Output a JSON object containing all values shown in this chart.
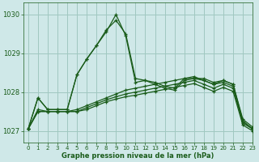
{
  "xlabel": "Graphe pression niveau de la mer (hPa)",
  "bg_color": "#cfe8e8",
  "grid_color": "#a0c8c0",
  "line_color": "#1a5c1a",
  "marker": "+",
  "xlim": [
    -0.5,
    23
  ],
  "ylim": [
    1026.7,
    1030.3
  ],
  "yticks": [
    1027,
    1028,
    1029,
    1030
  ],
  "xtick_labels": [
    "0",
    "1",
    "2",
    "3",
    "4",
    "5",
    "6",
    "7",
    "8",
    "9",
    "10",
    "11",
    "12",
    "13",
    "14",
    "15",
    "16",
    "17",
    "18",
    "19",
    "20",
    "21",
    "22",
    "23"
  ],
  "lines": [
    [
      1027.05,
      1027.85,
      1027.55,
      1027.55,
      1027.55,
      1028.45,
      1028.85,
      1029.2,
      1029.6,
      1029.85,
      1029.5,
      1028.35,
      1028.3,
      1028.25,
      1028.15,
      1028.1,
      1028.35,
      1028.35,
      1028.35,
      1028.25,
      1028.3,
      1028.2,
      1027.3,
      1027.1
    ],
    [
      1027.05,
      1027.85,
      1027.55,
      1027.55,
      1027.55,
      1028.45,
      1028.85,
      1029.2,
      1029.55,
      1030.0,
      1029.45,
      1028.25,
      1028.3,
      1028.2,
      1028.1,
      1028.05,
      1028.3,
      1028.35,
      1028.3,
      1028.2,
      1028.25,
      1028.15,
      1027.25,
      1027.05
    ],
    [
      1027.05,
      1027.55,
      1027.5,
      1027.5,
      1027.5,
      1027.55,
      1027.65,
      1027.75,
      1027.85,
      1027.95,
      1028.05,
      1028.1,
      1028.15,
      1028.2,
      1028.25,
      1028.3,
      1028.35,
      1028.4,
      1028.3,
      1028.2,
      1028.3,
      1028.2,
      1027.25,
      1027.05
    ],
    [
      1027.05,
      1027.5,
      1027.5,
      1027.5,
      1027.5,
      1027.5,
      1027.6,
      1027.7,
      1027.8,
      1027.88,
      1027.95,
      1028.0,
      1028.05,
      1028.1,
      1028.15,
      1028.2,
      1028.25,
      1028.3,
      1028.2,
      1028.1,
      1028.2,
      1028.1,
      1027.2,
      1027.05
    ],
    [
      1027.05,
      1027.5,
      1027.5,
      1027.5,
      1027.5,
      1027.5,
      1027.55,
      1027.65,
      1027.75,
      1027.82,
      1027.88,
      1027.92,
      1027.97,
      1028.02,
      1028.07,
      1028.12,
      1028.17,
      1028.22,
      1028.12,
      1028.02,
      1028.12,
      1028.02,
      1027.15,
      1027.0
    ]
  ]
}
